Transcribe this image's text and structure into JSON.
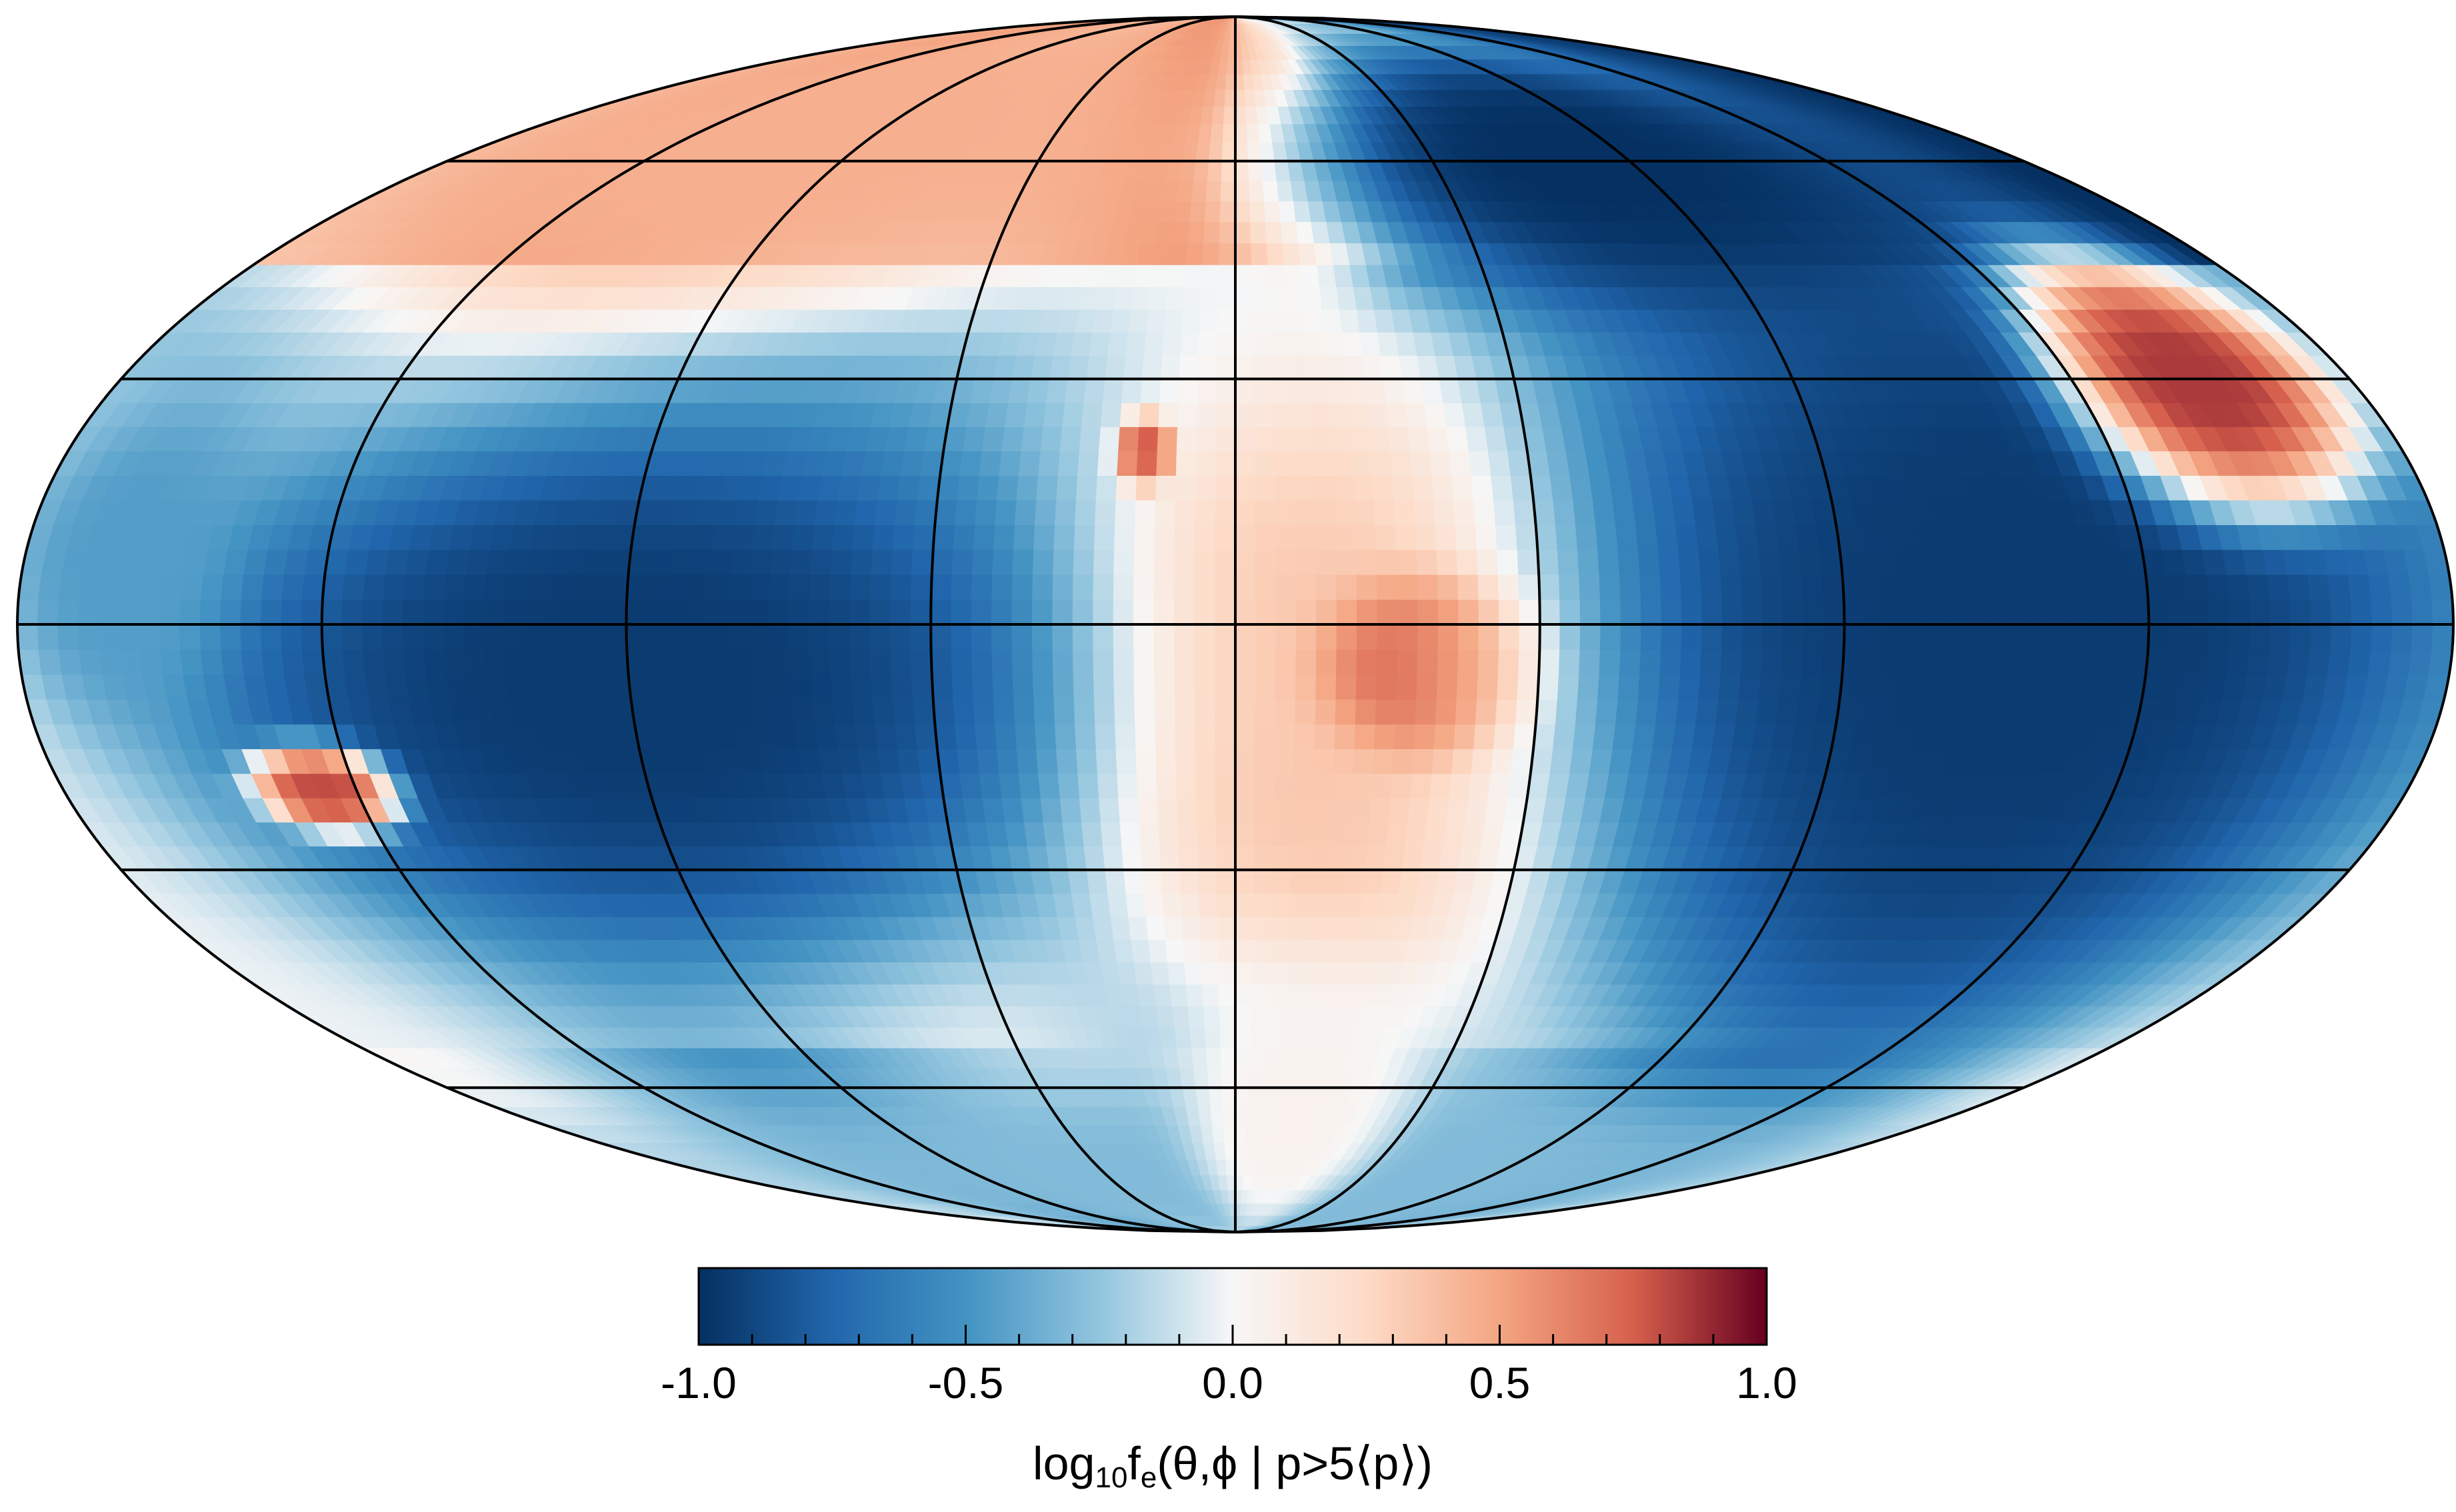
{
  "chart_data": {
    "type": "heatmap",
    "projection": "mollweide",
    "title": "",
    "colormap": "RdBu_r (diverging: dark blue → white → dark red)",
    "graticule": {
      "longitude_lines_deg": [
        -180,
        -135,
        -90,
        -45,
        0,
        45,
        90,
        135,
        180
      ],
      "latitude_lines_deg": [
        -60,
        -30,
        0,
        30,
        60
      ],
      "color": "#000000"
    },
    "colorbar": {
      "orientation": "horizontal",
      "placement": "bottom",
      "vmin": -1.0,
      "vmax": 1.0,
      "tick_labels": [
        "-1.0",
        "-0.5",
        "0.0",
        "0.5",
        "1.0"
      ],
      "minor_ticks_per_major": 5,
      "label": {
        "prefix": "log",
        "prefix_sub": "10",
        "main": "f",
        "main_sub": "e",
        "args": "(θ,ϕ | p>5⟨p⟩)"
      }
    },
    "regions": [
      {
        "name": "north-polar-rim",
        "lon_range": [
          -180,
          -20
        ],
        "lat_range": [
          40,
          90
        ],
        "value": 0.45
      },
      {
        "name": "north-center-lobe",
        "lon_range": [
          0,
          30
        ],
        "lat_range": [
          45,
          80
        ],
        "value": 0.35
      },
      {
        "name": "central-warm-region",
        "lon_range": [
          -25,
          55
        ],
        "lat_range": [
          -45,
          25
        ],
        "value": 0.35
      },
      {
        "name": "central-peak",
        "lon_range": [
          15,
          45
        ],
        "lat_range": [
          -15,
          5
        ],
        "value": 0.75
      },
      {
        "name": "small-peak",
        "lon_range": [
          -18,
          -10
        ],
        "lat_range": [
          18,
          24
        ],
        "value": 0.8
      },
      {
        "name": "west-blue-belt",
        "lon_range": [
          -150,
          -30
        ],
        "lat_range": [
          -40,
          25
        ],
        "value": -0.95
      },
      {
        "name": "east-blue-region",
        "lon_range": [
          55,
          180
        ],
        "lat_range": [
          -55,
          55
        ],
        "value": -0.95
      },
      {
        "name": "north-east-blue",
        "lon_range": [
          20,
          140
        ],
        "lat_range": [
          40,
          80
        ],
        "value": -1.0
      },
      {
        "name": "east-red-streak",
        "lon_range": [
          135,
          175
        ],
        "lat_range": [
          15,
          45
        ],
        "value": 0.85
      },
      {
        "name": "south-west-red-spot",
        "lon_range": [
          -150,
          -130
        ],
        "lat_range": [
          -25,
          -15
        ],
        "value": 0.8
      },
      {
        "name": "far-west-equator",
        "lon_range": [
          -180,
          -150
        ],
        "lat_range": [
          -10,
          25
        ],
        "value": -0.45
      },
      {
        "name": "south-rim",
        "lon_range": [
          -180,
          180
        ],
        "lat_range": [
          -90,
          -60
        ],
        "value": -0.3
      },
      {
        "name": "south-center-lobe",
        "lon_range": [
          -10,
          40
        ],
        "lat_range": [
          -85,
          -45
        ],
        "value": 0.05
      }
    ]
  }
}
